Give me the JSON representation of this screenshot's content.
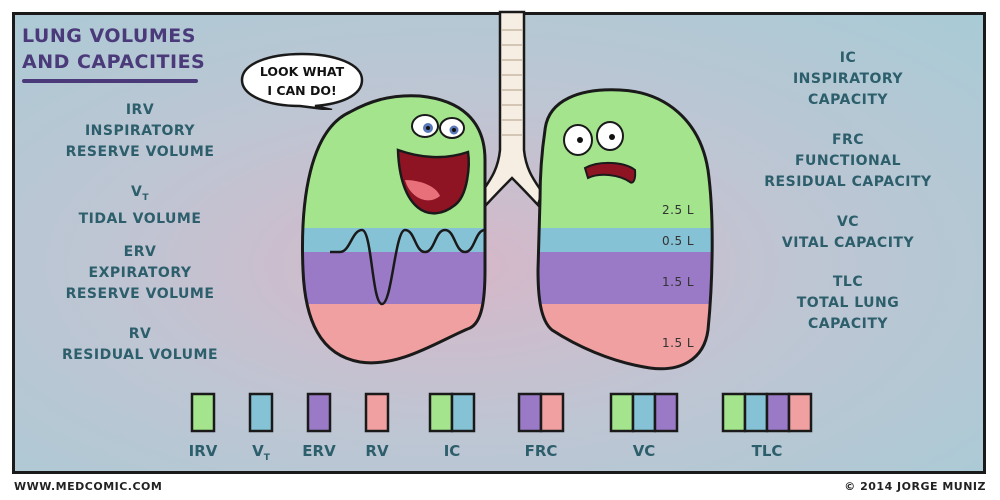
{
  "title": {
    "line1": "LUNG VOLUMES",
    "line2": "AND CAPACITIES"
  },
  "speech": {
    "line1": "LOOK WHAT",
    "line2": "I CAN DO!"
  },
  "volumes": [
    {
      "abbr": "IRV",
      "name1": "INSPIRATORY",
      "name2": "RESERVE VOLUME"
    },
    {
      "abbr_main": "V",
      "abbr_sub": "T",
      "name1": "TIDAL VOLUME"
    },
    {
      "abbr": "ERV",
      "name1": "EXPIRATORY",
      "name2": "RESERVE VOLUME"
    },
    {
      "abbr": "RV",
      "name1": "RESIDUAL VOLUME"
    }
  ],
  "capacities": [
    {
      "abbr": "IC",
      "name1": "INSPIRATORY",
      "name2": "CAPACITY"
    },
    {
      "abbr": "FRC",
      "name1": "FUNCTIONAL",
      "name2": "RESIDUAL CAPACITY"
    },
    {
      "abbr": "VC",
      "name1": "VITAL CAPACITY"
    },
    {
      "abbr": "TLC",
      "name1": "TOTAL LUNG",
      "name2": "CAPACITY"
    }
  ],
  "volume_values": {
    "irv": "2.5 L",
    "vt": "0.5 L",
    "erv": "1.5 L",
    "rv": "1.5 L"
  },
  "legend": {
    "irv": "IRV",
    "vt_main": "V",
    "vt_sub": "T",
    "erv": "ERV",
    "rv": "RV",
    "ic": "IC",
    "frc": "FRC",
    "vc": "VC",
    "tlc": "TLC"
  },
  "colors": {
    "irv": "#a4e48d",
    "vt": "#86c2d6",
    "erv": "#9a7ac6",
    "rv": "#f0a0a0"
  },
  "footer": {
    "left": "WWW.MEDCOMIC.COM",
    "right": "© 2014 JORGE MUNIZ"
  }
}
